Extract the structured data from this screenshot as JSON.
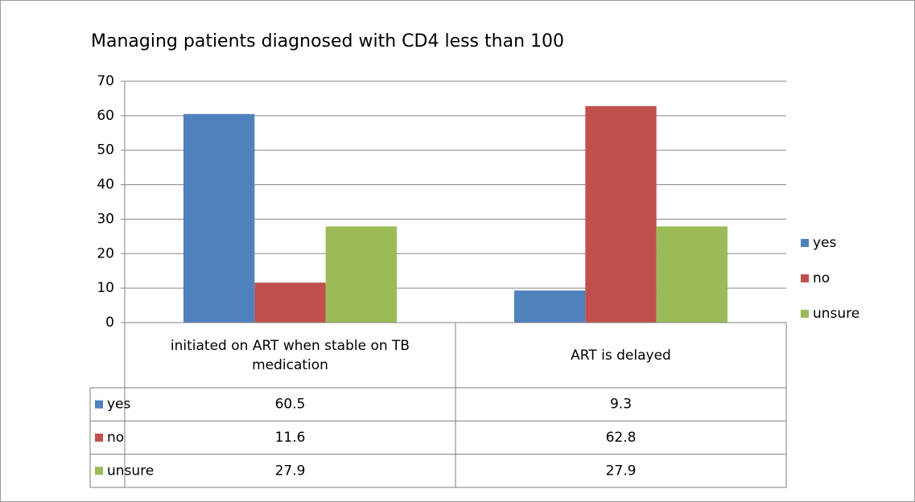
{
  "chart_data": {
    "type": "bar",
    "title": "Managing patients diagnosed with CD4 less than   100",
    "categories": [
      "initiated on ART when stable on TB medication",
      "ART is delayed"
    ],
    "series": [
      {
        "name": "yes",
        "color": "#4f81bd",
        "values": [
          60.5,
          9.3
        ]
      },
      {
        "name": "no",
        "color": "#c0504d",
        "values": [
          11.6,
          62.8
        ]
      },
      {
        "name": "unsure",
        "color": "#9bbb59",
        "values": [
          27.9,
          27.9
        ]
      }
    ],
    "ylim": [
      0,
      70
    ],
    "yticks": [
      0,
      10,
      20,
      30,
      40,
      50,
      60,
      70
    ],
    "grid": true,
    "legend": "right",
    "data_table": true
  }
}
